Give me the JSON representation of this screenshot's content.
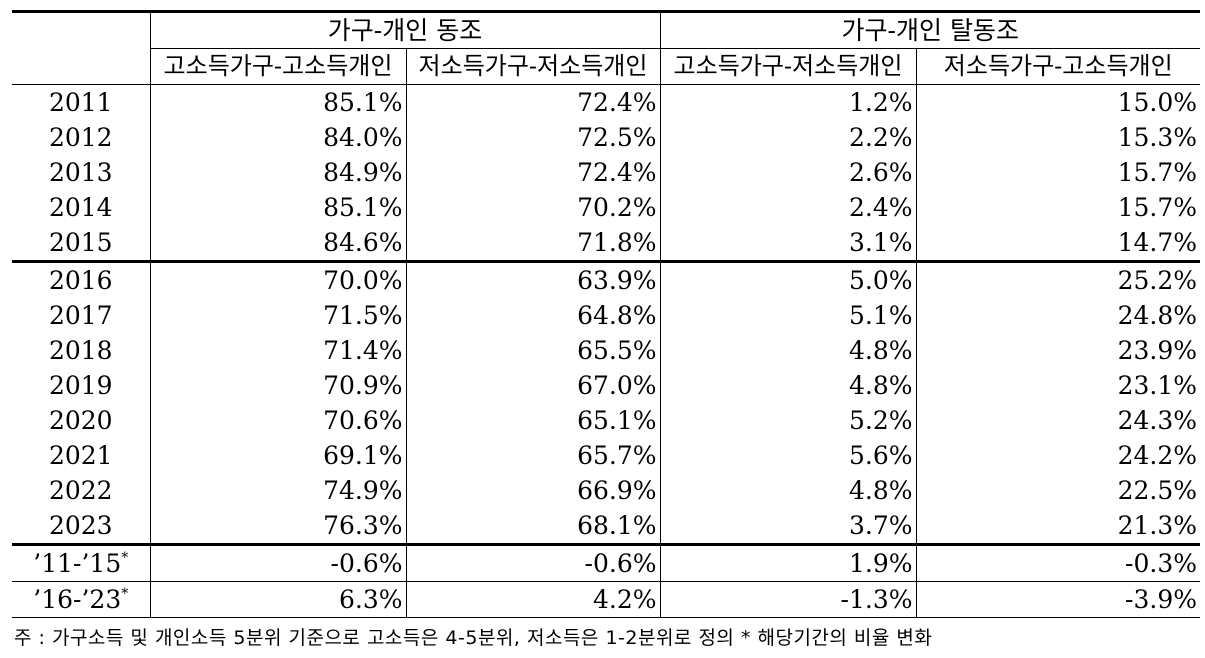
{
  "header": {
    "group1": "가구-개인 동조",
    "group2": "가구-개인 탈동조",
    "col1": "고소득가구-고소득개인",
    "col2": "저소득가구-저소득개인",
    "col3": "고소득가구-저소득개인",
    "col4": "저소득가구-고소득개인"
  },
  "rows": [
    {
      "year": "2011",
      "v1": "85.1%",
      "v2": "72.4%",
      "v3": "1.2%",
      "v4": "15.0%"
    },
    {
      "year": "2012",
      "v1": "84.0%",
      "v2": "72.5%",
      "v3": "2.2%",
      "v4": "15.3%"
    },
    {
      "year": "2013",
      "v1": "84.9%",
      "v2": "72.4%",
      "v3": "2.6%",
      "v4": "15.7%"
    },
    {
      "year": "2014",
      "v1": "85.1%",
      "v2": "70.2%",
      "v3": "2.4%",
      "v4": "15.7%"
    },
    {
      "year": "2015",
      "v1": "84.6%",
      "v2": "71.8%",
      "v3": "3.1%",
      "v4": "14.7%"
    },
    {
      "year": "2016",
      "v1": "70.0%",
      "v2": "63.9%",
      "v3": "5.0%",
      "v4": "25.2%"
    },
    {
      "year": "2017",
      "v1": "71.5%",
      "v2": "64.8%",
      "v3": "5.1%",
      "v4": "24.8%"
    },
    {
      "year": "2018",
      "v1": "71.4%",
      "v2": "65.5%",
      "v3": "4.8%",
      "v4": "23.9%"
    },
    {
      "year": "2019",
      "v1": "70.9%",
      "v2": "67.0%",
      "v3": "4.8%",
      "v4": "23.1%"
    },
    {
      "year": "2020",
      "v1": "70.6%",
      "v2": "65.1%",
      "v3": "5.2%",
      "v4": "24.3%"
    },
    {
      "year": "2021",
      "v1": "69.1%",
      "v2": "65.7%",
      "v3": "5.6%",
      "v4": "24.2%"
    },
    {
      "year": "2022",
      "v1": "74.9%",
      "v2": "66.9%",
      "v3": "4.8%",
      "v4": "22.5%"
    },
    {
      "year": "2023",
      "v1": "76.3%",
      "v2": "68.1%",
      "v3": "3.7%",
      "v4": "21.3%"
    }
  ],
  "changes": [
    {
      "period": "’11-’15",
      "mark": "*",
      "v1": "-0.6%",
      "v2": "-0.6%",
      "v3": "1.9%",
      "v4": "-0.3%"
    },
    {
      "period": "’16-’23",
      "mark": "*",
      "v1": "6.3%",
      "v2": "4.2%",
      "v3": "-1.3%",
      "v4": "-3.9%"
    }
  ],
  "note": "주 : 가구소득 및 개인소득 5분위 기준으로 고소득은 4-5분위, 저소득은 1-2분위로 정의 * 해당기간의 비율 변화"
}
